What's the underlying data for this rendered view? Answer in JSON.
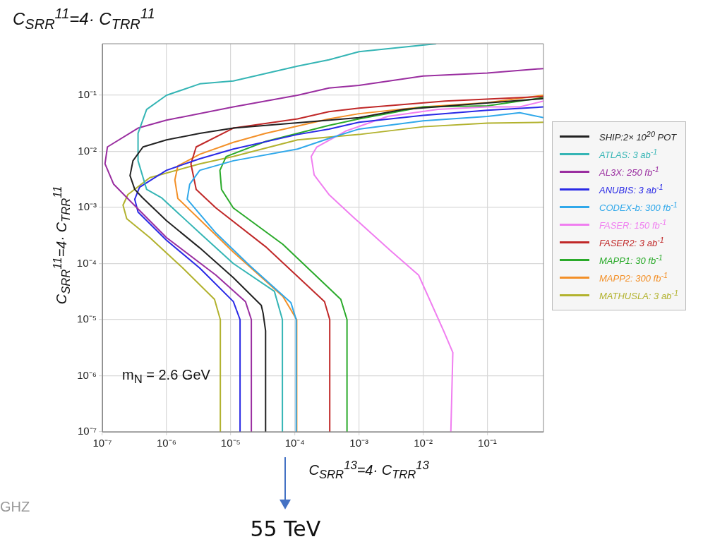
{
  "chart_data": {
    "type": "line",
    "title": "C$_{SRR}$$^{11}$=4· C$_{TRR}$$^{11}$",
    "xlabel": "C$_{SRR}$$^{13}$=4· C$_{TRR}$$^{13}$",
    "ylabel": "C$_{SRR}$$^{11}$=4· C$_{TRR}$$^{11}$",
    "log": "xy",
    "grid": true,
    "legend": "right",
    "marker": "none",
    "xlim": [
      1e-07,
      0.75
    ],
    "ylim": [
      1e-07,
      0.83
    ],
    "xticks": [
      {
        "value": 1e-07,
        "label": "10⁻⁷"
      },
      {
        "value": 1e-06,
        "label": "10⁻⁶"
      },
      {
        "value": 1e-05,
        "label": "10⁻⁵"
      },
      {
        "value": 0.0001,
        "label": "10⁻⁴"
      },
      {
        "value": 0.001,
        "label": "10⁻³"
      },
      {
        "value": 0.01,
        "label": "10⁻²"
      },
      {
        "value": 0.1,
        "label": "10⁻¹"
      }
    ],
    "yticks": [
      {
        "value": 1e-07,
        "label": "10⁻⁷"
      },
      {
        "value": 1e-06,
        "label": "10⁻⁶"
      },
      {
        "value": 1e-05,
        "label": "10⁻⁵"
      },
      {
        "value": 0.0001,
        "label": "10⁻⁴"
      },
      {
        "value": 0.001,
        "label": "10⁻³"
      },
      {
        "value": 0.01,
        "label": "10⁻²"
      },
      {
        "value": 0.1,
        "label": "10⁻¹"
      }
    ],
    "annotations": [
      "m$_{N}$ = 2.6 GeV",
      "55 TeV",
      "GHZ"
    ],
    "series": [
      {
        "name": "SHIP:2× 10$^{20}$ POT",
        "color": "#222222",
        "x": [
          3.5e-05,
          3.5e-05,
          3.2e-05,
          3e-05,
          1.1e-05,
          3.3e-06,
          1e-06,
          4.2e-07,
          3.2e-07,
          2.7e-07,
          3e-07,
          4.3e-07,
          1e-06,
          3.3e-06,
          1.1e-05,
          0.00014,
          0.001,
          0.005,
          0.75
        ],
        "values": [
          1e-07,
          6.3e-06,
          1.3e-05,
          1.8e-05,
          5.6e-05,
          0.00019,
          0.00058,
          0.0015,
          0.0021,
          0.0037,
          0.0068,
          0.012,
          0.016,
          0.021,
          0.026,
          0.033,
          0.04,
          0.056,
          0.087
        ]
      },
      {
        "name": "ATLAS: 3 ab$^{-1}$",
        "color": "#35b5b5",
        "x": [
          6.4e-05,
          6.4e-05,
          4.8e-05,
          1.1e-05,
          3.3e-06,
          8.3e-07,
          4.9e-07,
          3.6e-07,
          3.6e-07,
          4.9e-07,
          1e-06,
          3.3e-06,
          1.1e-05,
          0.00011,
          0.00034,
          0.001,
          0.016
        ],
        "values": [
          1e-07,
          1e-05,
          3.2e-05,
          0.0001,
          0.00035,
          0.0015,
          0.0021,
          0.0068,
          0.021,
          0.056,
          0.1,
          0.16,
          0.18,
          0.33,
          0.43,
          0.6,
          0.83
        ]
      },
      {
        "name": "AL3X: 250 fb$^{-1}$",
        "color": "#9a2ea0",
        "x": [
          2.1e-05,
          2.1e-05,
          1.7e-05,
          5.9e-06,
          1e-06,
          2.4e-07,
          1.5e-07,
          1.1e-07,
          1.2e-07,
          3.6e-07,
          1e-06,
          1.1e-05,
          0.00011,
          0.00034,
          0.001,
          0.01,
          0.1,
          0.75
        ],
        "values": [
          1e-07,
          1e-05,
          2.1e-05,
          6.2e-05,
          0.00029,
          0.0015,
          0.0026,
          0.006,
          0.012,
          0.026,
          0.036,
          0.062,
          0.1,
          0.135,
          0.15,
          0.22,
          0.25,
          0.3
        ]
      },
      {
        "name": "ANUBIS: 3 ab$^{-1}$",
        "color": "#2a2ae6",
        "x": [
          1.4e-05,
          1.4e-05,
          1.1e-05,
          3.3e-06,
          1e-06,
          3.6e-07,
          3.2e-07,
          3.8e-07,
          1e-06,
          3.3e-06,
          1.1e-05,
          0.00011,
          0.00034,
          0.001,
          0.01,
          0.1,
          0.75
        ],
        "values": [
          1e-07,
          1e-05,
          2.1e-05,
          8.3e-05,
          0.00026,
          0.00083,
          0.0014,
          0.0023,
          0.0046,
          0.0074,
          0.011,
          0.02,
          0.025,
          0.033,
          0.044,
          0.054,
          0.062
        ]
      },
      {
        "name": "CODEX-b: 300 fb$^{-1}$",
        "color": "#30a8ea",
        "x": [
          0.000105,
          0.000105,
          8.7e-05,
          2e-05,
          5.9e-06,
          2.1e-06,
          2.3e-06,
          3.3e-06,
          1.1e-05,
          0.00011,
          0.00034,
          0.001,
          0.01,
          0.1,
          0.32,
          0.75
        ],
        "values": [
          1e-07,
          1e-05,
          2e-05,
          9.1e-05,
          0.00035,
          0.0014,
          0.0026,
          0.0046,
          0.0068,
          0.011,
          0.017,
          0.025,
          0.035,
          0.042,
          0.049,
          0.04
        ]
      },
      {
        "name": "FASER: 150 fb$^{-1}$",
        "color": "#f07ef0",
        "x": [
          0.027,
          0.029,
          0.021,
          0.0085,
          0.0031,
          0.00083,
          0.00034,
          0.0002,
          0.00018,
          0.00022,
          0.00062,
          0.0028,
          0.017,
          0.1,
          0.32,
          0.75
        ],
        "values": [
          1e-07,
          2.6e-06,
          6.2e-06,
          6.2e-05,
          0.00017,
          0.00066,
          0.0017,
          0.0038,
          0.0081,
          0.012,
          0.023,
          0.042,
          0.056,
          0.062,
          0.062,
          0.079
        ]
      },
      {
        "name": "FASER2: 3 ab$^{-1}$",
        "color": "#c02828",
        "x": [
          0.00035,
          0.00035,
          0.00029,
          3.5e-05,
          5.9e-06,
          2.9e-06,
          2.4e-06,
          2.9e-06,
          1.1e-05,
          0.00011,
          0.00034,
          0.001,
          0.022,
          0.75
        ],
        "values": [
          1e-07,
          1e-05,
          2.1e-05,
          0.0002,
          0.00098,
          0.0021,
          0.006,
          0.012,
          0.026,
          0.038,
          0.051,
          0.059,
          0.079,
          0.095
        ]
      },
      {
        "name": "MAPP1: 30 fb$^{-1}$",
        "color": "#2aaa2a",
        "x": [
          0.00065,
          0.00065,
          0.00052,
          6.5e-05,
          1.1e-05,
          7.2e-06,
          6.8e-06,
          8.5e-06,
          3.5e-05,
          0.00034,
          0.001,
          0.01,
          0.1,
          0.75
        ],
        "values": [
          1e-07,
          1e-05,
          2.3e-05,
          0.00022,
          0.00098,
          0.0021,
          0.0046,
          0.0081,
          0.015,
          0.029,
          0.038,
          0.062,
          0.065,
          0.091
        ]
      },
      {
        "name": "MAPP2: 300 fb$^{-1}$",
        "color": "#f39028",
        "x": [
          0.000107,
          0.000107,
          6.5e-05,
          1.1e-05,
          1.5e-06,
          1.35e-06,
          1.5e-06,
          3.3e-06,
          1.1e-05,
          3.5e-05,
          0.00034,
          0.001,
          0.01,
          0.1,
          0.75
        ],
        "values": [
          1e-07,
          1e-05,
          2.6e-05,
          0.00016,
          0.00145,
          0.0031,
          0.0055,
          0.0089,
          0.0145,
          0.021,
          0.038,
          0.047,
          0.062,
          0.074,
          0.1
        ]
      },
      {
        "name": "MATHUSLA: 3 ab$^{-1}$",
        "color": "#b2b22e",
        "x": [
          6.9e-06,
          6.9e-06,
          5.6e-06,
          1.8e-06,
          5.5e-07,
          2.4e-07,
          2.1e-07,
          2.5e-07,
          5.5e-07,
          3.3e-06,
          1.1e-05,
          0.00011,
          0.001,
          0.01,
          0.1,
          0.75
        ],
        "values": [
          1e-07,
          1e-05,
          2.3e-05,
          8.3e-05,
          0.00029,
          0.00063,
          0.0011,
          0.0017,
          0.0034,
          0.006,
          0.0081,
          0.016,
          0.02,
          0.0275,
          0.032,
          0.033
        ]
      }
    ]
  }
}
